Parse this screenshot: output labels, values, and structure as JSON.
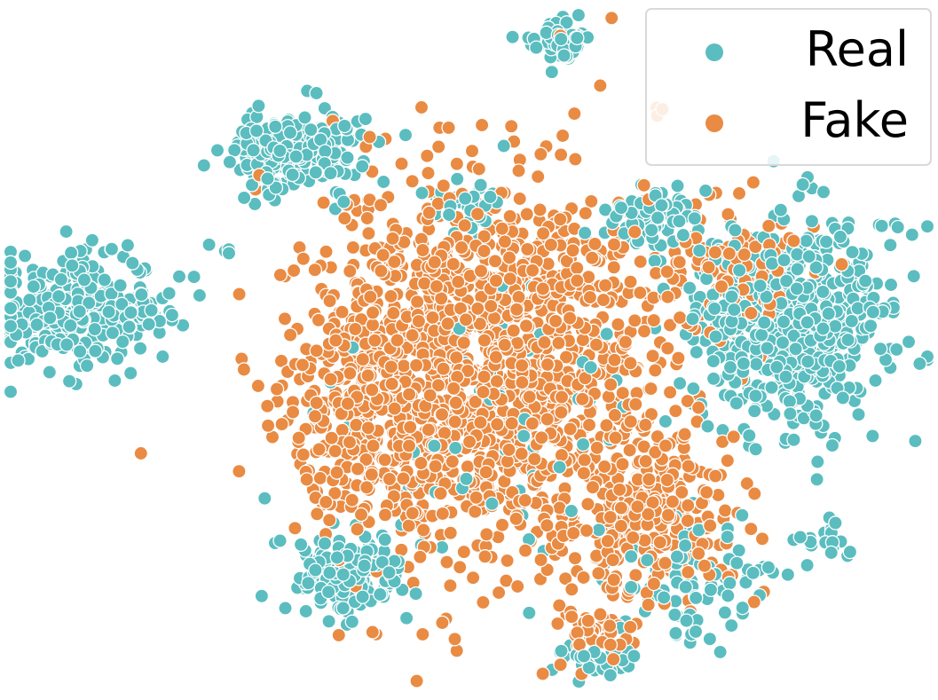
{
  "chart_data": {
    "type": "scatter",
    "title": "",
    "xlabel": "",
    "ylabel": "",
    "axes_visible": false,
    "grid": false,
    "legend_position": "top-right",
    "series": [
      {
        "name": "Real",
        "color": "#5bbdbf",
        "clusters": [
          {
            "center": [
              0.6,
              0.95
            ],
            "spread": [
              0.02,
              0.02
            ],
            "count": 60
          },
          {
            "center": [
              0.31,
              0.79
            ],
            "spread": [
              0.05,
              0.04
            ],
            "count": 220
          },
          {
            "center": [
              0.07,
              0.56
            ],
            "spread": [
              0.06,
              0.06
            ],
            "count": 260
          },
          {
            "center": [
              0.15,
              0.56
            ],
            "spread": [
              0.02,
              0.02
            ],
            "count": 30
          },
          {
            "center": [
              0.23,
              0.65
            ],
            "spread": [
              0.01,
              0.01
            ],
            "count": 4
          },
          {
            "center": [
              0.5,
              0.71
            ],
            "spread": [
              0.03,
              0.03
            ],
            "count": 40
          },
          {
            "center": [
              0.7,
              0.69
            ],
            "spread": [
              0.03,
              0.03
            ],
            "count": 70
          },
          {
            "center": [
              0.85,
              0.54
            ],
            "spread": [
              0.07,
              0.1
            ],
            "count": 600
          },
          {
            "center": [
              0.37,
              0.17
            ],
            "spread": [
              0.04,
              0.04
            ],
            "count": 170
          },
          {
            "center": [
              0.64,
              0.05
            ],
            "spread": [
              0.03,
              0.02
            ],
            "count": 60
          },
          {
            "center": [
              0.75,
              0.16
            ],
            "spread": [
              0.06,
              0.05
            ],
            "count": 80
          },
          {
            "center": [
              0.89,
              0.22
            ],
            "spread": [
              0.02,
              0.02
            ],
            "count": 20
          },
          {
            "center": [
              0.55,
              0.42
            ],
            "spread": [
              0.12,
              0.18
            ],
            "count": 70
          },
          {
            "center": [
              0.97,
              0.68
            ],
            "spread": [
              0.01,
              0.01
            ],
            "count": 4
          }
        ]
      },
      {
        "name": "Fake",
        "color": "#e98b43",
        "clusters": [
          {
            "center": [
              0.52,
              0.48
            ],
            "spread": [
              0.13,
              0.18
            ],
            "count": 1500
          },
          {
            "center": [
              0.7,
              0.25
            ],
            "spread": [
              0.06,
              0.08
            ],
            "count": 250
          },
          {
            "center": [
              0.64,
              0.08
            ],
            "spread": [
              0.03,
              0.03
            ],
            "count": 60
          },
          {
            "center": [
              0.38,
              0.42
            ],
            "spread": [
              0.05,
              0.12
            ],
            "count": 200
          },
          {
            "center": [
              0.8,
              0.62
            ],
            "spread": [
              0.05,
              0.05
            ],
            "count": 120
          }
        ]
      }
    ]
  }
}
